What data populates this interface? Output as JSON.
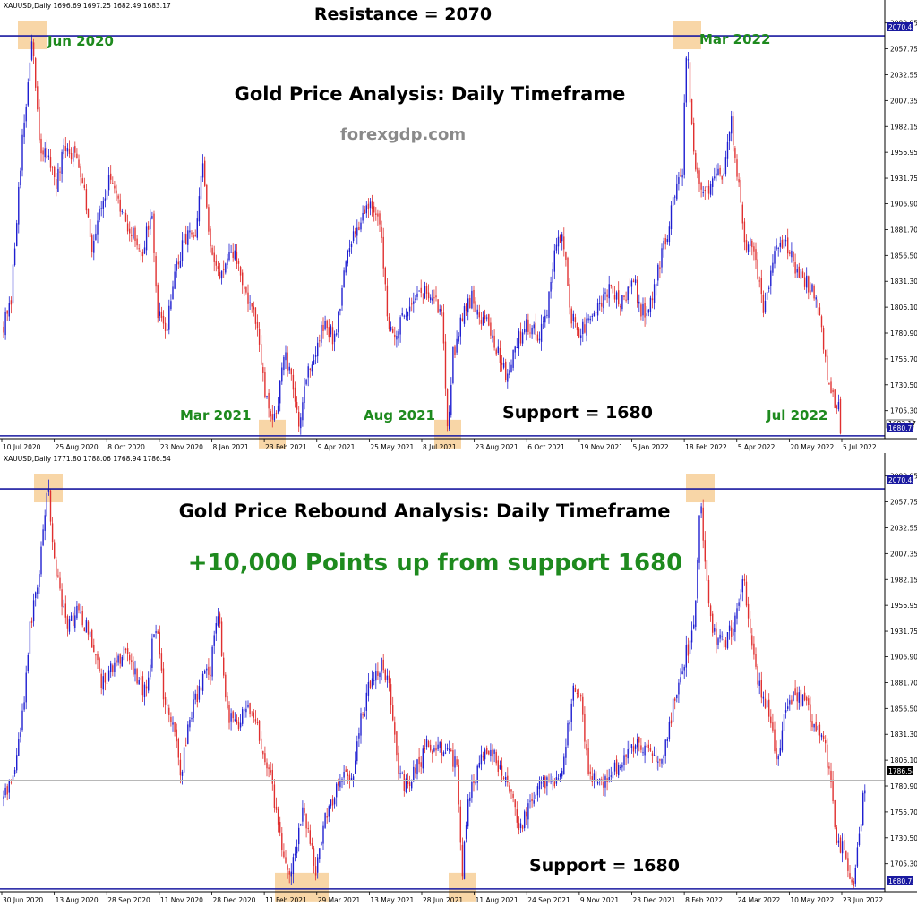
{
  "colors": {
    "bull": "#1f1fd0",
    "bear": "#e03030",
    "level_line": "#1a1aa0",
    "highlight": "#f5c88a",
    "annotation_green": "#1e8a1e",
    "brand_gray": "#8a8a8a",
    "axis": "#000000"
  },
  "chart_data": [
    {
      "type": "candlestick",
      "symbol_header": "XAUUSD,Daily  1696.69 1697.25 1682.49 1683.17",
      "title": "Gold Price Analysis: Daily Timeframe",
      "brand": "forexgdp.com",
      "y_ticks": [
        "2082.95",
        "2057.75",
        "2032.55",
        "2007.35",
        "1982.15",
        "1956.95",
        "1931.75",
        "1906.90",
        "1881.70",
        "1856.50",
        "1831.30",
        "1806.10",
        "1780.90",
        "1755.70",
        "1730.50",
        "1705.30"
      ],
      "y_tick_values": [
        2082.95,
        2057.75,
        2032.55,
        2007.35,
        1982.15,
        1956.95,
        1931.75,
        1906.9,
        1881.7,
        1856.5,
        1831.3,
        1806.1,
        1780.9,
        1755.7,
        1730.5,
        1705.3
      ],
      "ylim": [
        1678,
        2094
      ],
      "x_ticks": [
        "10 Jul 2020",
        "25 Aug 2020",
        "8 Oct 2020",
        "23 Nov 2020",
        "8 Jan 2021",
        "23 Feb 2021",
        "9 Apr 2021",
        "25 May 2021",
        "8 Jul 2021",
        "23 Aug 2021",
        "6 Oct 2021",
        "19 Nov 2021",
        "5 Jan 2022",
        "18 Feb 2022",
        "5 Apr 2022",
        "20 May 2022",
        "5 Jul 2022"
      ],
      "levels": [
        {
          "label": "Resistance = 2070",
          "value": 2070.42,
          "price_tag": "2070.42"
        },
        {
          "label": "Support = 1680",
          "value": 1680.73,
          "price_tag": "1680.73"
        }
      ],
      "current_price_tag": "1683.17",
      "annotations": [
        "Jun 2020",
        "Mar 2022",
        "Mar 2021",
        "Aug 2021",
        "Jul 2022"
      ],
      "key_path": [
        [
          0,
          1790
        ],
        [
          8,
          1805
        ],
        [
          18,
          1940
        ],
        [
          25,
          2000
        ],
        [
          32,
          2072
        ],
        [
          36,
          2010
        ],
        [
          42,
          1950
        ],
        [
          50,
          1960
        ],
        [
          58,
          1920
        ],
        [
          68,
          1960
        ],
        [
          80,
          1955
        ],
        [
          90,
          1930
        ],
        [
          98,
          1860
        ],
        [
          106,
          1900
        ],
        [
          118,
          1930
        ],
        [
          130,
          1900
        ],
        [
          142,
          1880
        ],
        [
          155,
          1860
        ],
        [
          165,
          1900
        ],
        [
          172,
          1800
        ],
        [
          180,
          1780
        ],
        [
          192,
          1840
        ],
        [
          205,
          1880
        ],
        [
          215,
          1870
        ],
        [
          222,
          1950
        ],
        [
          232,
          1850
        ],
        [
          245,
          1840
        ],
        [
          258,
          1860
        ],
        [
          270,
          1820
        ],
        [
          282,
          1790
        ],
        [
          292,
          1720
        ],
        [
          300,
          1690
        ],
        [
          306,
          1715
        ],
        [
          314,
          1760
        ],
        [
          322,
          1730
        ],
        [
          330,
          1695
        ],
        [
          338,
          1740
        ],
        [
          348,
          1760
        ],
        [
          358,
          1790
        ],
        [
          370,
          1775
        ],
        [
          380,
          1840
        ],
        [
          392,
          1880
        ],
        [
          402,
          1900
        ],
        [
          412,
          1910
        ],
        [
          422,
          1870
        ],
        [
          430,
          1790
        ],
        [
          440,
          1780
        ],
        [
          450,
          1805
        ],
        [
          460,
          1820
        ],
        [
          472,
          1820
        ],
        [
          482,
          1810
        ],
        [
          490,
          1800
        ],
        [
          496,
          1690
        ],
        [
          502,
          1760
        ],
        [
          512,
          1800
        ],
        [
          522,
          1815
        ],
        [
          532,
          1800
        ],
        [
          542,
          1790
        ],
        [
          552,
          1760
        ],
        [
          562,
          1740
        ],
        [
          572,
          1770
        ],
        [
          585,
          1790
        ],
        [
          598,
          1780
        ],
        [
          608,
          1810
        ],
        [
          618,
          1870
        ],
        [
          626,
          1870
        ],
        [
          632,
          1800
        ],
        [
          642,
          1780
        ],
        [
          652,
          1790
        ],
        [
          662,
          1800
        ],
        [
          672,
          1820
        ],
        [
          682,
          1820
        ],
        [
          692,
          1810
        ],
        [
          702,
          1840
        ],
        [
          712,
          1800
        ],
        [
          722,
          1810
        ],
        [
          732,
          1850
        ],
        [
          742,
          1880
        ],
        [
          750,
          1920
        ],
        [
          758,
          1940
        ],
        [
          763,
          2072
        ],
        [
          768,
          1980
        ],
        [
          775,
          1930
        ],
        [
          785,
          1920
        ],
        [
          795,
          1930
        ],
        [
          805,
          1940
        ],
        [
          812,
          1990
        ],
        [
          820,
          1930
        ],
        [
          828,
          1870
        ],
        [
          838,
          1860
        ],
        [
          848,
          1800
        ],
        [
          858,
          1850
        ],
        [
          868,
          1870
        ],
        [
          878,
          1860
        ],
        [
          888,
          1840
        ],
        [
          898,
          1830
        ],
        [
          908,
          1810
        ],
        [
          914,
          1780
        ],
        [
          920,
          1740
        ],
        [
          926,
          1720
        ],
        [
          932,
          1710
        ],
        [
          935,
          1683
        ]
      ]
    },
    {
      "type": "candlestick",
      "symbol_header": "XAUUSD,Daily  1771.80 1788.06 1768.94 1786.54",
      "title": "Gold Price Rebound Analysis: Daily Timeframe",
      "subtitle": "+10,000 Points up from support 1680",
      "y_ticks": [
        "2082.95",
        "2057.75",
        "2032.55",
        "2007.35",
        "1982.15",
        "1956.95",
        "1931.75",
        "1906.90",
        "1881.70",
        "1856.50",
        "1831.30",
        "1806.10",
        "1780.90",
        "1755.70",
        "1730.50",
        "1705.30"
      ],
      "y_tick_values": [
        2082.95,
        2057.75,
        2032.55,
        2007.35,
        1982.15,
        1956.95,
        1931.75,
        1906.9,
        1881.7,
        1856.5,
        1831.3,
        1806.1,
        1780.9,
        1755.7,
        1730.5,
        1705.3
      ],
      "ylim": [
        1678,
        2094
      ],
      "x_ticks": [
        "30 Jun 2020",
        "13 Aug 2020",
        "28 Sep 2020",
        "11 Nov 2020",
        "28 Dec 2020",
        "11 Feb 2021",
        "29 Mar 2021",
        "13 May 2021",
        "28 Jun 2021",
        "11 Aug 2021",
        "24 Sep 2021",
        "9 Nov 2021",
        "23 Dec 2021",
        "8 Feb 2022",
        "24 Mar 2022",
        "10 May 2022",
        "23 Jun 2022"
      ],
      "levels": [
        {
          "label": "",
          "value": 2070.42,
          "price_tag": "2070.42"
        },
        {
          "label": "Support = 1680",
          "value": 1680.73,
          "price_tag": "1680.73"
        }
      ],
      "current_price_tag": "1786.54",
      "current_price_value": 1786.54,
      "key_path": [
        [
          0,
          1770
        ],
        [
          10,
          1790
        ],
        [
          20,
          1840
        ],
        [
          30,
          1940
        ],
        [
          40,
          1990
        ],
        [
          50,
          2072
        ],
        [
          56,
          2010
        ],
        [
          64,
          1960
        ],
        [
          72,
          1940
        ],
        [
          84,
          1950
        ],
        [
          96,
          1930
        ],
        [
          110,
          1880
        ],
        [
          122,
          1900
        ],
        [
          134,
          1910
        ],
        [
          146,
          1890
        ],
        [
          158,
          1870
        ],
        [
          170,
          1940
        ],
        [
          180,
          1860
        ],
        [
          190,
          1840
        ],
        [
          198,
          1790
        ],
        [
          208,
          1850
        ],
        [
          220,
          1880
        ],
        [
          230,
          1890
        ],
        [
          240,
          1950
        ],
        [
          250,
          1850
        ],
        [
          260,
          1840
        ],
        [
          272,
          1860
        ],
        [
          285,
          1830
        ],
        [
          298,
          1790
        ],
        [
          310,
          1720
        ],
        [
          318,
          1690
        ],
        [
          326,
          1720
        ],
        [
          334,
          1760
        ],
        [
          342,
          1730
        ],
        [
          348,
          1690
        ],
        [
          356,
          1740
        ],
        [
          366,
          1760
        ],
        [
          378,
          1790
        ],
        [
          390,
          1790
        ],
        [
          400,
          1850
        ],
        [
          412,
          1890
        ],
        [
          422,
          1900
        ],
        [
          432,
          1870
        ],
        [
          442,
          1790
        ],
        [
          452,
          1780
        ],
        [
          462,
          1800
        ],
        [
          472,
          1820
        ],
        [
          484,
          1820
        ],
        [
          496,
          1810
        ],
        [
          506,
          1800
        ],
        [
          512,
          1690
        ],
        [
          518,
          1760
        ],
        [
          530,
          1800
        ],
        [
          542,
          1815
        ],
        [
          554,
          1800
        ],
        [
          566,
          1770
        ],
        [
          578,
          1740
        ],
        [
          590,
          1770
        ],
        [
          602,
          1790
        ],
        [
          614,
          1780
        ],
        [
          626,
          1810
        ],
        [
          636,
          1870
        ],
        [
          644,
          1870
        ],
        [
          652,
          1800
        ],
        [
          664,
          1780
        ],
        [
          676,
          1790
        ],
        [
          688,
          1800
        ],
        [
          700,
          1820
        ],
        [
          712,
          1820
        ],
        [
          724,
          1810
        ],
        [
          734,
          1800
        ],
        [
          744,
          1840
        ],
        [
          754,
          1890
        ],
        [
          766,
          1920
        ],
        [
          772,
          1950
        ],
        [
          778,
          2072
        ],
        [
          784,
          1990
        ],
        [
          792,
          1930
        ],
        [
          804,
          1920
        ],
        [
          816,
          1940
        ],
        [
          826,
          1990
        ],
        [
          834,
          1920
        ],
        [
          844,
          1880
        ],
        [
          856,
          1850
        ],
        [
          864,
          1800
        ],
        [
          874,
          1860
        ],
        [
          886,
          1870
        ],
        [
          896,
          1860
        ],
        [
          906,
          1840
        ],
        [
          916,
          1820
        ],
        [
          924,
          1790
        ],
        [
          930,
          1730
        ],
        [
          938,
          1720
        ],
        [
          944,
          1700
        ],
        [
          950,
          1690
        ],
        [
          956,
          1740
        ],
        [
          962,
          1786
        ]
      ]
    }
  ]
}
